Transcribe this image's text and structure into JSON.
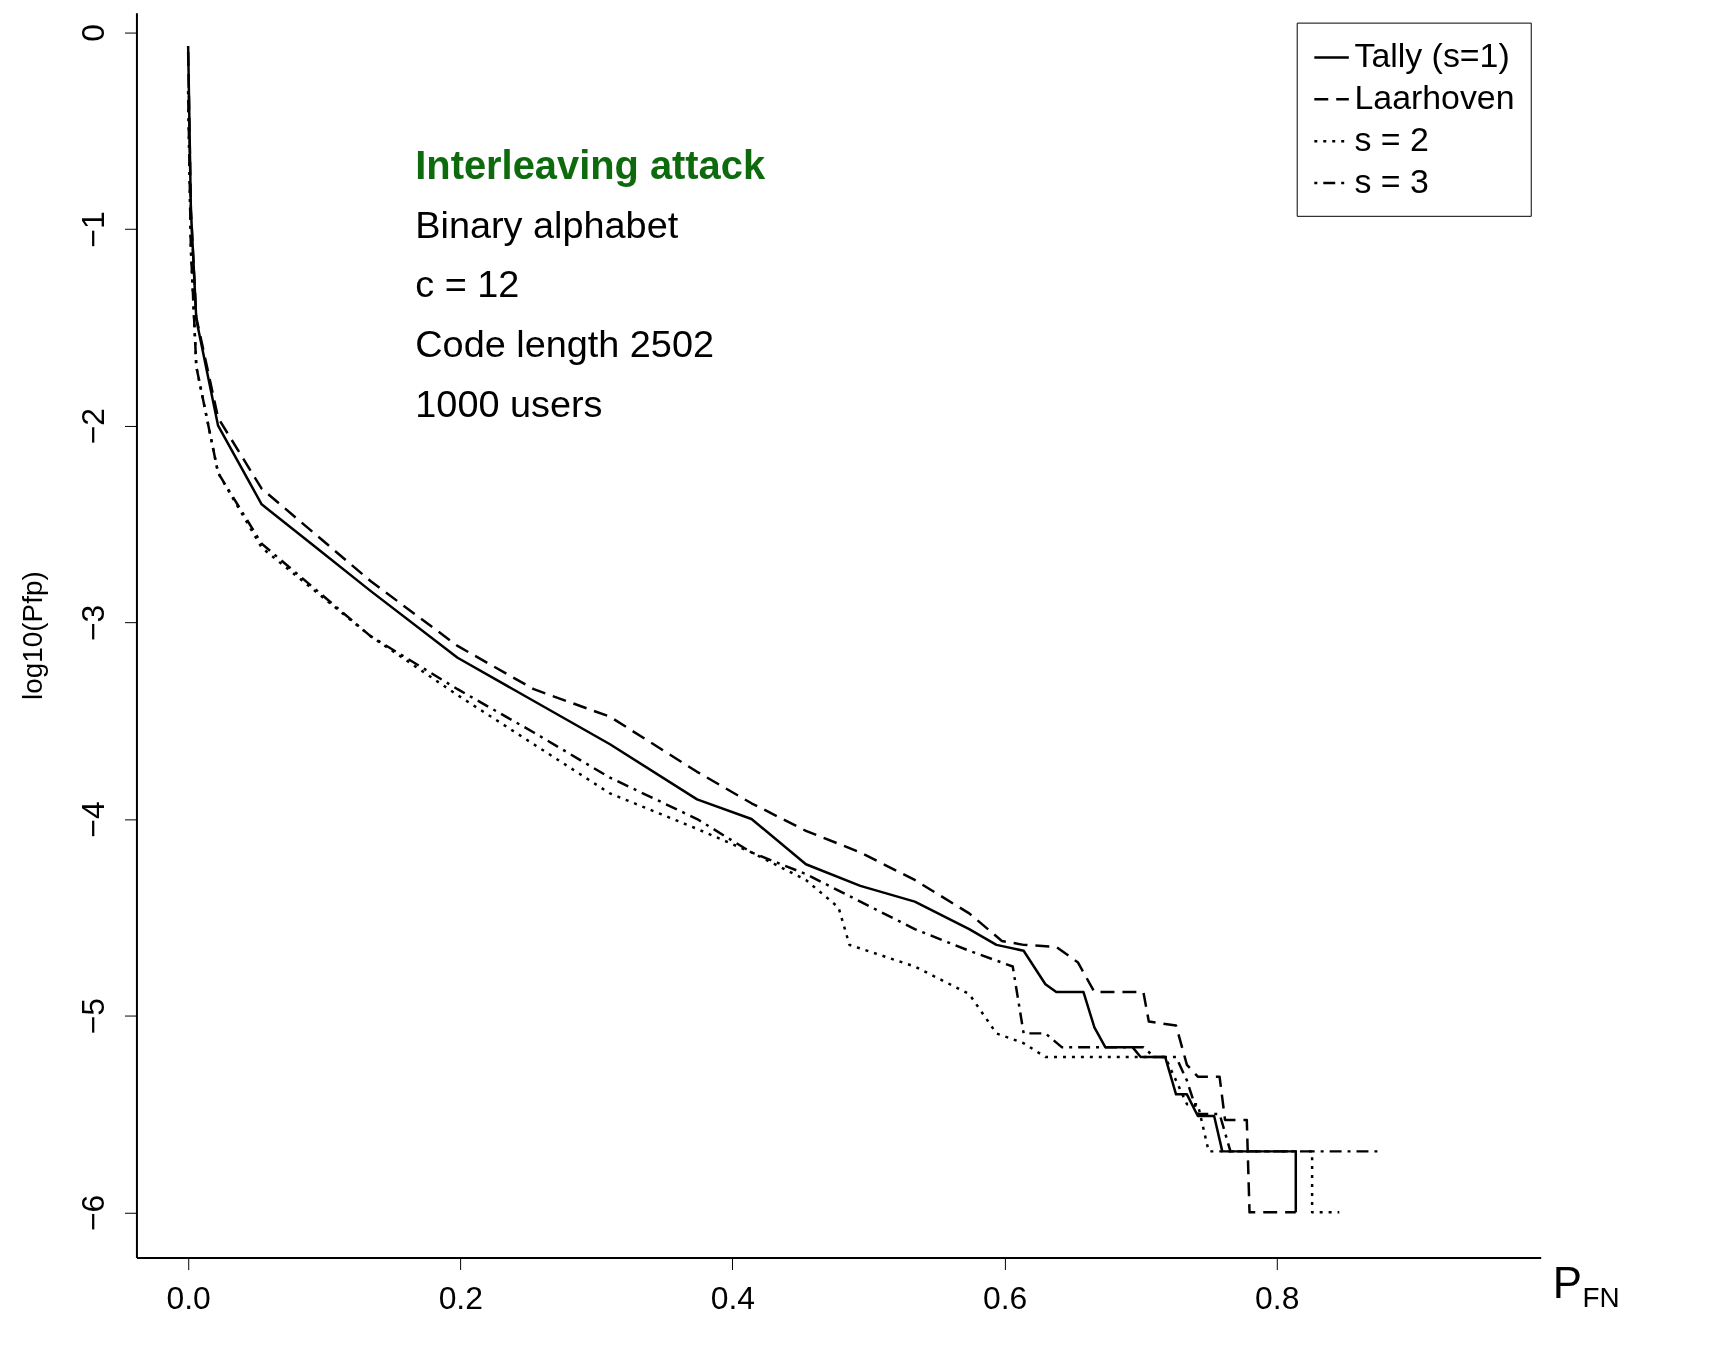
{
  "chart_data": {
    "type": "line",
    "xlabel": "P$_{FN}$",
    "ylabel": "log10(Pfp)",
    "annotations": [
      "Interleaving attack",
      "Binary alphabet",
      "c = 12",
      "Code length 2502",
      "1000 users"
    ],
    "xlim": [
      -0.038,
      0.994
    ],
    "ylim": [
      -6.23,
      0.1
    ],
    "xticks": [
      {
        "value": 0,
        "label": "0.0"
      },
      0.2,
      0.4,
      0.6,
      0.8
    ],
    "yticks": [
      0,
      -1,
      -2,
      -3,
      -4,
      -5,
      -6
    ],
    "grid": false,
    "legend": "top right",
    "marker": "none",
    "series": [
      {
        "name": "Tally (s=1)",
        "color": "#000000",
        "line_style": "solid",
        "x": [
          0,
          0.002,
          0.006,
          0.022,
          0.054,
          0.094,
          0.134,
          0.198,
          0.254,
          0.31,
          0.374,
          0.414,
          0.454,
          0.494,
          0.534,
          0.574,
          0.594,
          0.614,
          0.63,
          0.638,
          0.658,
          0.666,
          0.674,
          0.694,
          0.7,
          0.718,
          0.726,
          0.734,
          0.742,
          0.754,
          0.76,
          0.814,
          0.814
        ],
        "values": [
          -0.07,
          -0.9,
          -1.46,
          -2.0,
          -2.4,
          -2.62,
          -2.84,
          -3.18,
          -3.4,
          -3.62,
          -3.9,
          -4.0,
          -4.23,
          -4.34,
          -4.42,
          -4.56,
          -4.64,
          -4.67,
          -4.84,
          -4.88,
          -4.88,
          -5.06,
          -5.16,
          -5.16,
          -5.21,
          -5.21,
          -5.4,
          -5.4,
          -5.51,
          -5.51,
          -5.69,
          -5.69,
          -6.0
        ]
      },
      {
        "name": "Laarhoven",
        "color": "#000000",
        "line_style": "dashed",
        "x": [
          0,
          0.002,
          0.006,
          0.022,
          0.054,
          0.134,
          0.198,
          0.254,
          0.31,
          0.374,
          0.414,
          0.454,
          0.494,
          0.534,
          0.574,
          0.598,
          0.614,
          0.638,
          0.654,
          0.666,
          0.702,
          0.706,
          0.726,
          0.734,
          0.742,
          0.758,
          0.762,
          0.778,
          0.78,
          0.814
        ],
        "values": [
          -0.1,
          -0.9,
          -1.45,
          -1.96,
          -2.32,
          -2.79,
          -3.12,
          -3.34,
          -3.48,
          -3.76,
          -3.92,
          -4.06,
          -4.17,
          -4.31,
          -4.48,
          -4.62,
          -4.64,
          -4.65,
          -4.73,
          -4.88,
          -4.88,
          -5.03,
          -5.05,
          -5.25,
          -5.31,
          -5.31,
          -5.53,
          -5.53,
          -6.0,
          -6.0
        ]
      },
      {
        "name": "s = 2",
        "color": "#000000",
        "line_style": "dotted",
        "x": [
          0,
          0.002,
          0.006,
          0.022,
          0.054,
          0.134,
          0.198,
          0.254,
          0.31,
          0.374,
          0.414,
          0.454,
          0.478,
          0.486,
          0.534,
          0.574,
          0.594,
          0.614,
          0.63,
          0.718,
          0.726,
          0.734,
          0.742,
          0.75,
          0.826,
          0.826,
          0.846
        ],
        "values": [
          -0.3,
          -1.1,
          -1.7,
          -2.24,
          -2.62,
          -3.07,
          -3.37,
          -3.62,
          -3.87,
          -4.05,
          -4.17,
          -4.31,
          -4.45,
          -4.64,
          -4.75,
          -4.89,
          -5.09,
          -5.14,
          -5.21,
          -5.21,
          -5.33,
          -5.45,
          -5.45,
          -5.69,
          -5.69,
          -6.0,
          -6.0
        ]
      },
      {
        "name": "s = 3",
        "color": "#000000",
        "line_style": "dashdot",
        "x": [
          0,
          0.002,
          0.006,
          0.022,
          0.054,
          0.134,
          0.198,
          0.254,
          0.31,
          0.374,
          0.414,
          0.454,
          0.494,
          0.534,
          0.574,
          0.606,
          0.614,
          0.63,
          0.642,
          0.702,
          0.71,
          0.726,
          0.734,
          0.742,
          0.758,
          0.766,
          0.874
        ],
        "values": [
          -0.3,
          -1.1,
          -1.7,
          -2.24,
          -2.6,
          -3.07,
          -3.34,
          -3.56,
          -3.79,
          -4.0,
          -4.17,
          -4.28,
          -4.42,
          -4.56,
          -4.67,
          -4.75,
          -5.09,
          -5.09,
          -5.16,
          -5.16,
          -5.21,
          -5.21,
          -5.33,
          -5.5,
          -5.5,
          -5.69,
          -5.69
        ]
      }
    ]
  }
}
